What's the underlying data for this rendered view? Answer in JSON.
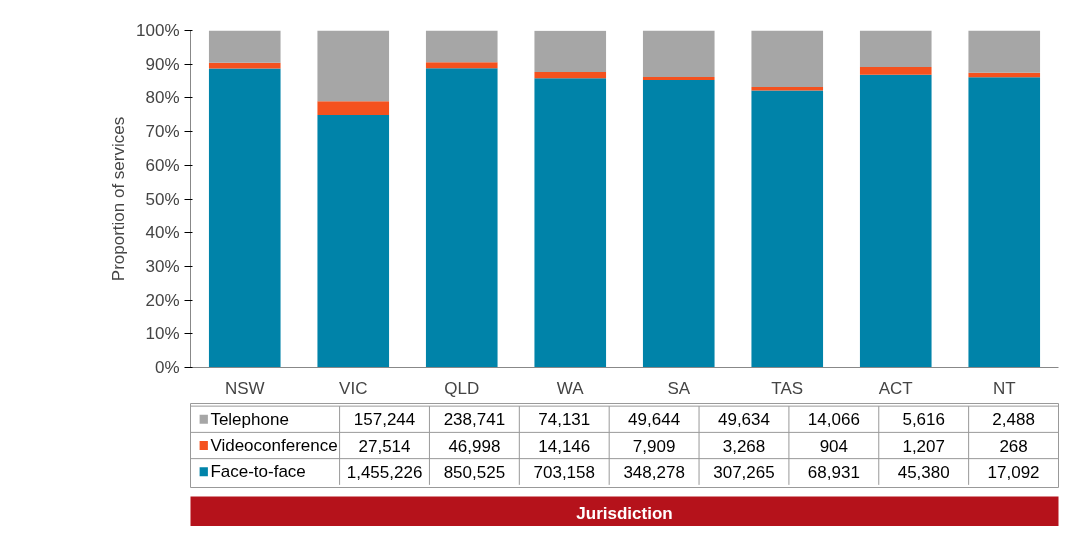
{
  "chart_data": {
    "type": "bar",
    "stacked": true,
    "ylabel": "Proportion of services",
    "categories": [
      "NSW",
      "VIC",
      "QLD",
      "WA",
      "SA",
      "TAS",
      "ACT",
      "NT"
    ],
    "ylim": [
      0,
      100
    ],
    "yticks": [
      {
        "value": 0,
        "label": "0%"
      },
      {
        "value": 10,
        "label": "10%"
      },
      {
        "value": 20,
        "label": "20%"
      },
      {
        "value": 30,
        "label": "30%"
      },
      {
        "value": 40,
        "label": "40%"
      },
      {
        "value": 50,
        "label": "50%"
      },
      {
        "value": 60,
        "label": "60%"
      },
      {
        "value": 70,
        "label": "70%"
      },
      {
        "value": 80,
        "label": "80%"
      },
      {
        "value": 90,
        "label": "90%"
      },
      {
        "value": 100,
        "label": "100%"
      }
    ],
    "series": [
      {
        "name": "Face-to-face",
        "color": "#0083a9",
        "values": [
          88.7,
          74.9,
          88.8,
          85.8,
          85.3,
          82.2,
          86.9,
          86.1
        ]
      },
      {
        "name": "Videoconference",
        "color": "#f4511e",
        "values": [
          1.7,
          4.1,
          1.8,
          1.9,
          0.9,
          1.0,
          2.3,
          1.4
        ]
      },
      {
        "name": "Telephone",
        "color": "#a6a6a6",
        "values": [
          9.6,
          21.0,
          9.4,
          12.2,
          13.8,
          16.8,
          10.8,
          12.5
        ]
      }
    ],
    "annotations": [
      "157,244",
      "238,741",
      "74,131",
      "49,644",
      "49,634",
      "14,066",
      "5,616",
      "2,488",
      "27,514",
      "46,998",
      "14,146",
      "7,909",
      "3,268",
      "904",
      "1,207",
      "268",
      "1,455,226",
      "850,525",
      "703,158",
      "348,278",
      "307,265",
      "68,931",
      "45,380",
      "17,092",
      "Jurisdiction"
    ],
    "legend": "bottom left",
    "grid": false
  }
}
